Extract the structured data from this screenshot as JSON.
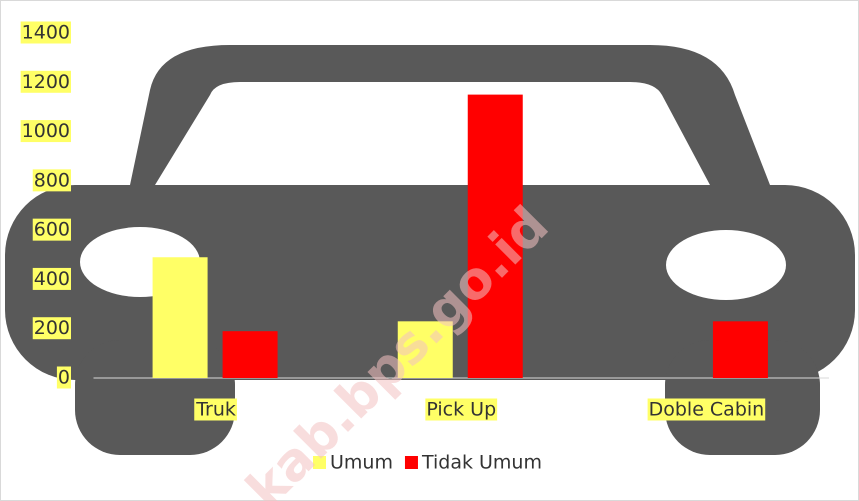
{
  "chart_data": {
    "type": "bar",
    "categories": [
      "Truk",
      "Pick Up",
      "Doble Cabin"
    ],
    "series": [
      {
        "name": "Umum",
        "color": "#ffff66",
        "values": [
          490,
          230,
          0
        ]
      },
      {
        "name": "Tidak Umum",
        "color": "#ff0000",
        "values": [
          190,
          1150,
          230
        ]
      }
    ],
    "ylim": [
      0,
      1400
    ],
    "yticks": [
      0,
      200,
      400,
      600,
      800,
      1000,
      1200,
      1400
    ],
    "label_highlight": "#ffff66",
    "watermark": "kab.bps.go.id"
  }
}
